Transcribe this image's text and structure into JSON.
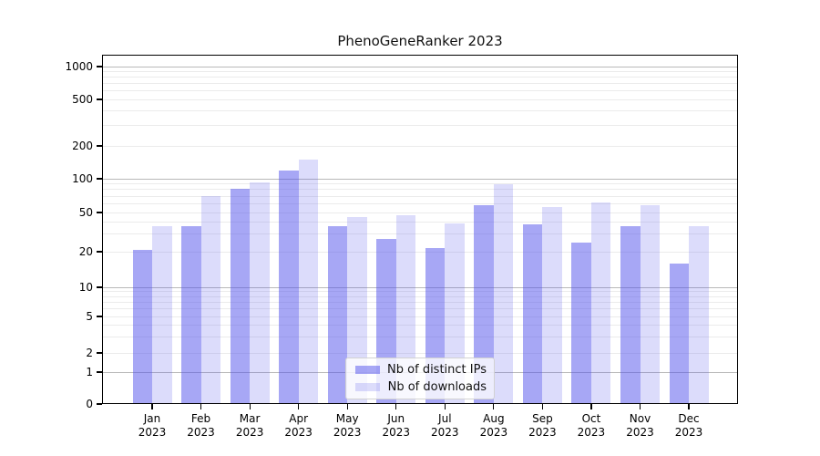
{
  "title": "PhenoGeneRanker 2023",
  "chart_data": {
    "type": "bar",
    "title": "PhenoGeneRanker 2023",
    "categories": [
      "Jan 2023",
      "Feb 2023",
      "Mar 2023",
      "Apr 2023",
      "May 2023",
      "Jun 2023",
      "Jul 2023",
      "Aug 2023",
      "Sep 2023",
      "Oct 2023",
      "Nov 2023",
      "Dec 2023"
    ],
    "series": [
      {
        "name": "Nb of distinct IPs",
        "values": [
          21,
          36,
          82,
          120,
          36,
          27,
          22,
          58,
          38,
          25,
          36,
          16
        ]
      },
      {
        "name": "Nb of downloads",
        "values": [
          36,
          70,
          93,
          150,
          45,
          47,
          39,
          90,
          56,
          61,
          58,
          36
        ]
      }
    ],
    "xlabel": "",
    "ylabel": "",
    "yscale": "symlog",
    "yticks": [
      0,
      1,
      2,
      5,
      10,
      20,
      50,
      100,
      200,
      500,
      1000
    ],
    "ylim": [
      0,
      1400
    ],
    "grid": true,
    "legend_position": "lower center"
  },
  "colors": {
    "bar_base": "#5050eb",
    "ips_alpha": 0.5,
    "downloads_alpha": 0.2,
    "major_grid": "#b9b9b9",
    "minor_grid": "#ebebeb",
    "spine": "#000000",
    "legend_border": "#d2d2d2",
    "text": "#000000"
  }
}
